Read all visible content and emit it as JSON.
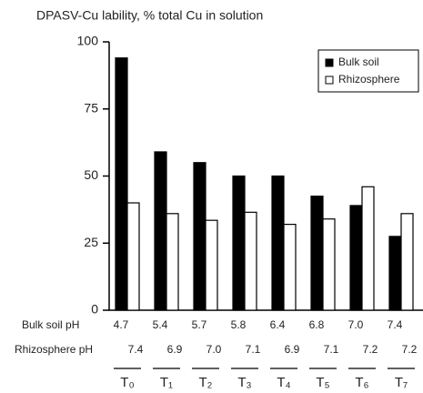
{
  "chart_data": {
    "type": "bar",
    "title": "DPASV-Cu lability, % total Cu in solution",
    "categories": [
      "T₀",
      "T₁",
      "T₂",
      "T₃",
      "T₄",
      "T₅",
      "T₆",
      "T₇"
    ],
    "series": [
      {
        "name": "Bulk soil",
        "color": "#000000",
        "values": [
          94,
          59,
          55,
          50,
          50,
          42.5,
          39,
          27.5
        ]
      },
      {
        "name": "Rhizosphere",
        "color": "#ffffff",
        "values": [
          40,
          36,
          33.5,
          36.5,
          32,
          34,
          46,
          36
        ]
      }
    ],
    "ylim": [
      0,
      100
    ],
    "yticks": [
      0,
      25,
      50,
      75,
      100
    ],
    "legend": "upper right",
    "ph_rows": [
      {
        "label": "Bulk soil pH",
        "values": [
          "4.7",
          "5.4",
          "5.7",
          "5.8",
          "6.4",
          "6.8",
          "7.0",
          "7.4"
        ]
      },
      {
        "label": "Rhizosphere pH",
        "values": [
          "7.4",
          "6.9",
          "7.0",
          "7.1",
          "6.9",
          "7.1",
          "7.2",
          "7.2"
        ]
      }
    ]
  }
}
